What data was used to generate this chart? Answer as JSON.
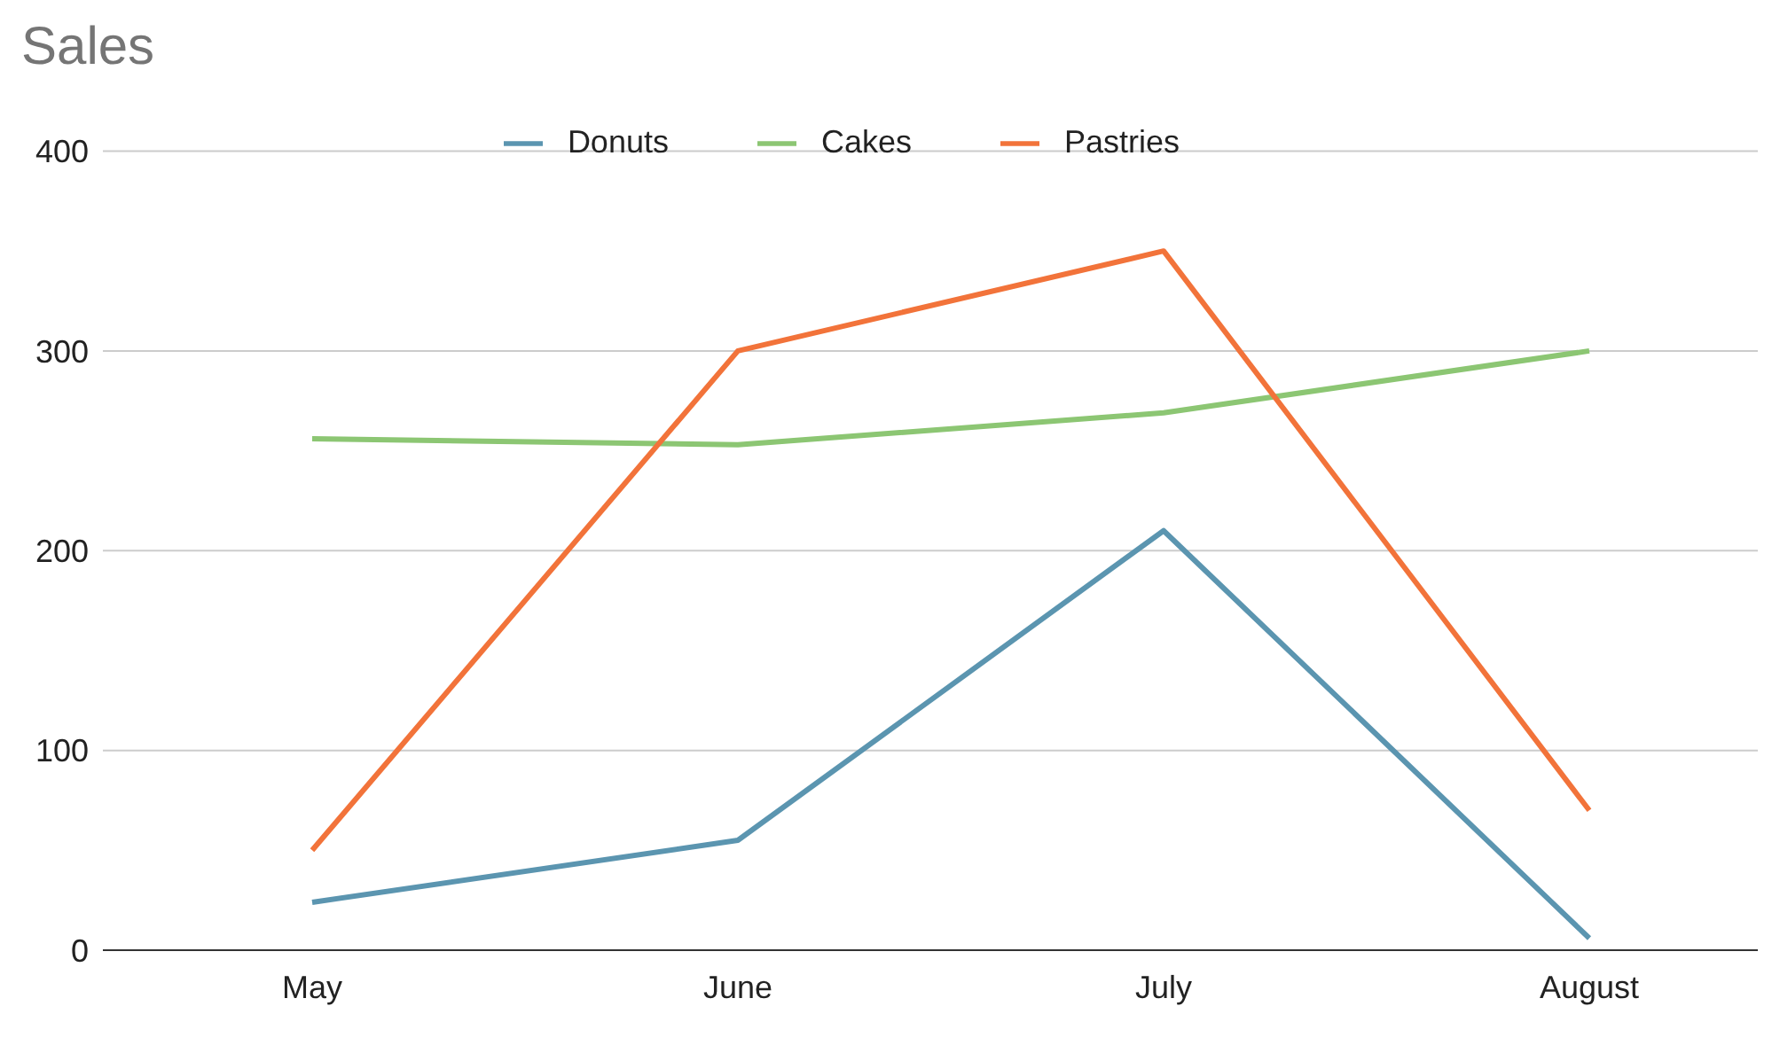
{
  "chart_data": {
    "type": "line",
    "title": "Sales",
    "categories": [
      "May",
      "June",
      "July",
      "August"
    ],
    "series": [
      {
        "name": "Donuts",
        "color": "#5b95b0",
        "values": [
          24,
          55,
          210,
          6
        ]
      },
      {
        "name": "Cakes",
        "color": "#8cc673",
        "values": [
          256,
          253,
          269,
          300
        ]
      },
      {
        "name": "Pastries",
        "color": "#f2733a",
        "values": [
          50,
          300,
          350,
          70
        ]
      }
    ],
    "ylim": [
      0,
      400
    ],
    "yticks": [
      0,
      100,
      200,
      300,
      400
    ],
    "grid": "y",
    "legend": "top",
    "marker": "none",
    "line_style": "solid"
  }
}
